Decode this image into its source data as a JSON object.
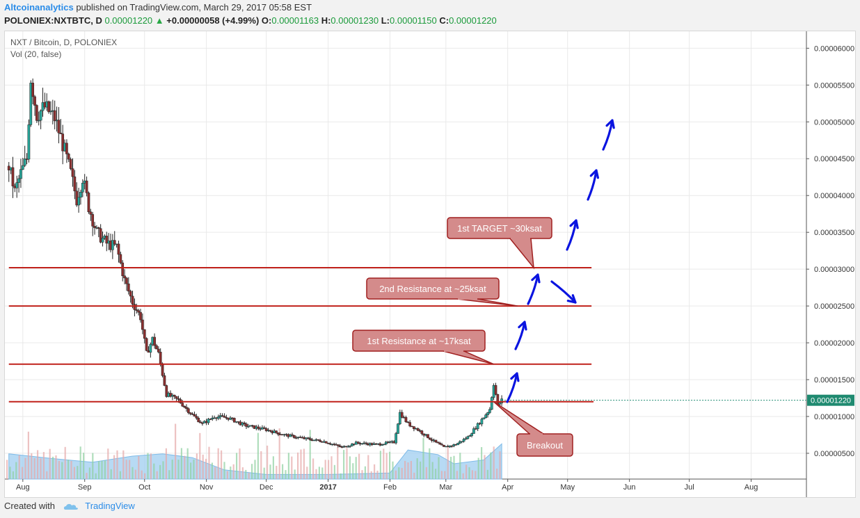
{
  "header": {
    "author": "Altcoinanalytics",
    "published": "published on TradingView.com, March 29, 2017 05:58 EST",
    "symbol": "POLONIEX:NXTBTC, D",
    "last": "0.00001220",
    "change_arrow": "▲",
    "change": "+0.00000058 (+4.99%)",
    "o_label": "O:",
    "o": "0.00001163",
    "h_label": "H:",
    "h": "0.00001230",
    "l_label": "L:",
    "l": "0.00001150",
    "c_label": "C:",
    "c": "0.00001220"
  },
  "legend": {
    "title": "NXT / Bitcoin, D, POLONIEX",
    "vol": "Vol (20, false)"
  },
  "footer": {
    "created": "Created with",
    "brand": "TradingView",
    "logo_icon": "tradingview-cloud-icon"
  },
  "colors": {
    "up": "#26a69a",
    "down": "#8b2f2f",
    "candle": "#222222",
    "resistance_line": "#c0211a",
    "callout_fill": "#d48b8b",
    "callout_border": "#a02020",
    "arrow": "#0a14e0",
    "volume_area": "#9fcdf0",
    "price_label_bg": "#1f8a70"
  },
  "chart_data": {
    "type": "candlestick",
    "x_ticks": [
      "Aug",
      "Sep",
      "Oct",
      "Nov",
      "Dec",
      "2017",
      "Feb",
      "Mar",
      "Apr",
      "May",
      "Jun",
      "Jul",
      "Aug"
    ],
    "y_ticks": [
      "0.00006000",
      "0.00005500",
      "0.00005000",
      "0.00004500",
      "0.00004000",
      "0.00003500",
      "0.00003000",
      "0.00002500",
      "0.00002000",
      "0.00001500",
      "0.00001000",
      "0.00000500"
    ],
    "ylim": [
      1.5e-06,
      6.23e-05
    ],
    "current_price_label": "0.00001220",
    "current_price": 1.22e-05,
    "price_path": [
      {
        "x": "2016-07-25",
        "y": 4.4e-05
      },
      {
        "x": "2016-07-28",
        "y": 4.05e-05
      },
      {
        "x": "2016-07-31",
        "y": 4.3e-05
      },
      {
        "x": "2016-08-03",
        "y": 4.5e-05
      },
      {
        "x": "2016-08-05",
        "y": 5.6e-05
      },
      {
        "x": "2016-08-08",
        "y": 5.1e-05
      },
      {
        "x": "2016-08-12",
        "y": 5.2e-05
      },
      {
        "x": "2016-08-17",
        "y": 5.05e-05
      },
      {
        "x": "2016-08-21",
        "y": 4.7e-05
      },
      {
        "x": "2016-08-25",
        "y": 4.3e-05
      },
      {
        "x": "2016-08-28",
        "y": 3.95e-05
      },
      {
        "x": "2016-08-31",
        "y": 4.25e-05
      },
      {
        "x": "2016-09-03",
        "y": 3.85e-05
      },
      {
        "x": "2016-09-07",
        "y": 3.5e-05
      },
      {
        "x": "2016-09-12",
        "y": 3.35e-05
      },
      {
        "x": "2016-09-17",
        "y": 3.3e-05
      },
      {
        "x": "2016-09-21",
        "y": 2.85e-05
      },
      {
        "x": "2016-09-25",
        "y": 2.55e-05
      },
      {
        "x": "2016-09-29",
        "y": 2.35e-05
      },
      {
        "x": "2016-10-02",
        "y": 1.85e-05
      },
      {
        "x": "2016-10-05",
        "y": 2.05e-05
      },
      {
        "x": "2016-10-08",
        "y": 1.85e-05
      },
      {
        "x": "2016-10-12",
        "y": 1.3e-05
      },
      {
        "x": "2016-10-18",
        "y": 1.22e-05
      },
      {
        "x": "2016-10-25",
        "y": 1.02e-05
      },
      {
        "x": "2016-10-30",
        "y": 9e-06
      },
      {
        "x": "2016-11-05",
        "y": 1e-05
      },
      {
        "x": "2016-11-12",
        "y": 9.8e-06
      },
      {
        "x": "2016-11-20",
        "y": 8.8e-06
      },
      {
        "x": "2016-12-01",
        "y": 8.2e-06
      },
      {
        "x": "2016-12-10",
        "y": 7.5e-06
      },
      {
        "x": "2016-12-20",
        "y": 7e-06
      },
      {
        "x": "2016-12-30",
        "y": 6.6e-06
      },
      {
        "x": "2017-01-08",
        "y": 5.8e-06
      },
      {
        "x": "2017-01-15",
        "y": 6.4e-06
      },
      {
        "x": "2017-01-25",
        "y": 6.2e-06
      },
      {
        "x": "2017-02-03",
        "y": 6.5e-06
      },
      {
        "x": "2017-02-06",
        "y": 1.05e-05
      },
      {
        "x": "2017-02-10",
        "y": 9e-06
      },
      {
        "x": "2017-02-15",
        "y": 8.2e-06
      },
      {
        "x": "2017-02-22",
        "y": 6.8e-06
      },
      {
        "x": "2017-02-28",
        "y": 5.8e-06
      },
      {
        "x": "2017-03-06",
        "y": 6.2e-06
      },
      {
        "x": "2017-03-12",
        "y": 7.2e-06
      },
      {
        "x": "2017-03-18",
        "y": 9.2e-06
      },
      {
        "x": "2017-03-23",
        "y": 1.1e-05
      },
      {
        "x": "2017-03-25",
        "y": 1.45e-05
      },
      {
        "x": "2017-03-27",
        "y": 1.15e-05
      },
      {
        "x": "2017-03-29",
        "y": 1.22e-05
      }
    ],
    "horizontal_lines": [
      {
        "y": 3.02e-05,
        "x1": "2016-07-25",
        "x2": "2017-05-13"
      },
      {
        "y": 2.5e-05,
        "x1": "2016-07-25",
        "x2": "2017-05-13"
      },
      {
        "y": 1.71e-05,
        "x1": "2016-07-25",
        "x2": "2017-05-13"
      },
      {
        "y": 1.2e-05,
        "x1": "2016-07-25",
        "x2": "2017-05-14"
      }
    ],
    "annotations": [
      {
        "text": "1st TARGET ~30ksat",
        "target_date": "2017-04-14",
        "target_y": 3.02e-05
      },
      {
        "text": "2nd Resistance at ~25ksat",
        "target_date": "2017-04-06",
        "target_y": 2.5e-05
      },
      {
        "text": "1st Resistance at ~17ksat",
        "target_date": "2017-03-25",
        "target_y": 1.71e-05
      },
      {
        "text": "Breakout",
        "target_date": "2017-03-25",
        "target_y": 1.2e-05
      }
    ],
    "volume_area": [
      {
        "x": "2016-07-25",
        "v": 0.33
      },
      {
        "x": "2016-08-15",
        "v": 0.27
      },
      {
        "x": "2016-09-05",
        "v": 0.22
      },
      {
        "x": "2016-09-25",
        "v": 0.3
      },
      {
        "x": "2016-10-10",
        "v": 0.33
      },
      {
        "x": "2016-10-25",
        "v": 0.28
      },
      {
        "x": "2016-11-10",
        "v": 0.12
      },
      {
        "x": "2016-12-01",
        "v": 0.06
      },
      {
        "x": "2017-01-01",
        "v": 0.06
      },
      {
        "x": "2017-02-01",
        "v": 0.08
      },
      {
        "x": "2017-02-10",
        "v": 0.38
      },
      {
        "x": "2017-02-25",
        "v": 0.32
      },
      {
        "x": "2017-03-05",
        "v": 0.2
      },
      {
        "x": "2017-03-20",
        "v": 0.25
      },
      {
        "x": "2017-03-29",
        "v": 0.46
      }
    ]
  }
}
